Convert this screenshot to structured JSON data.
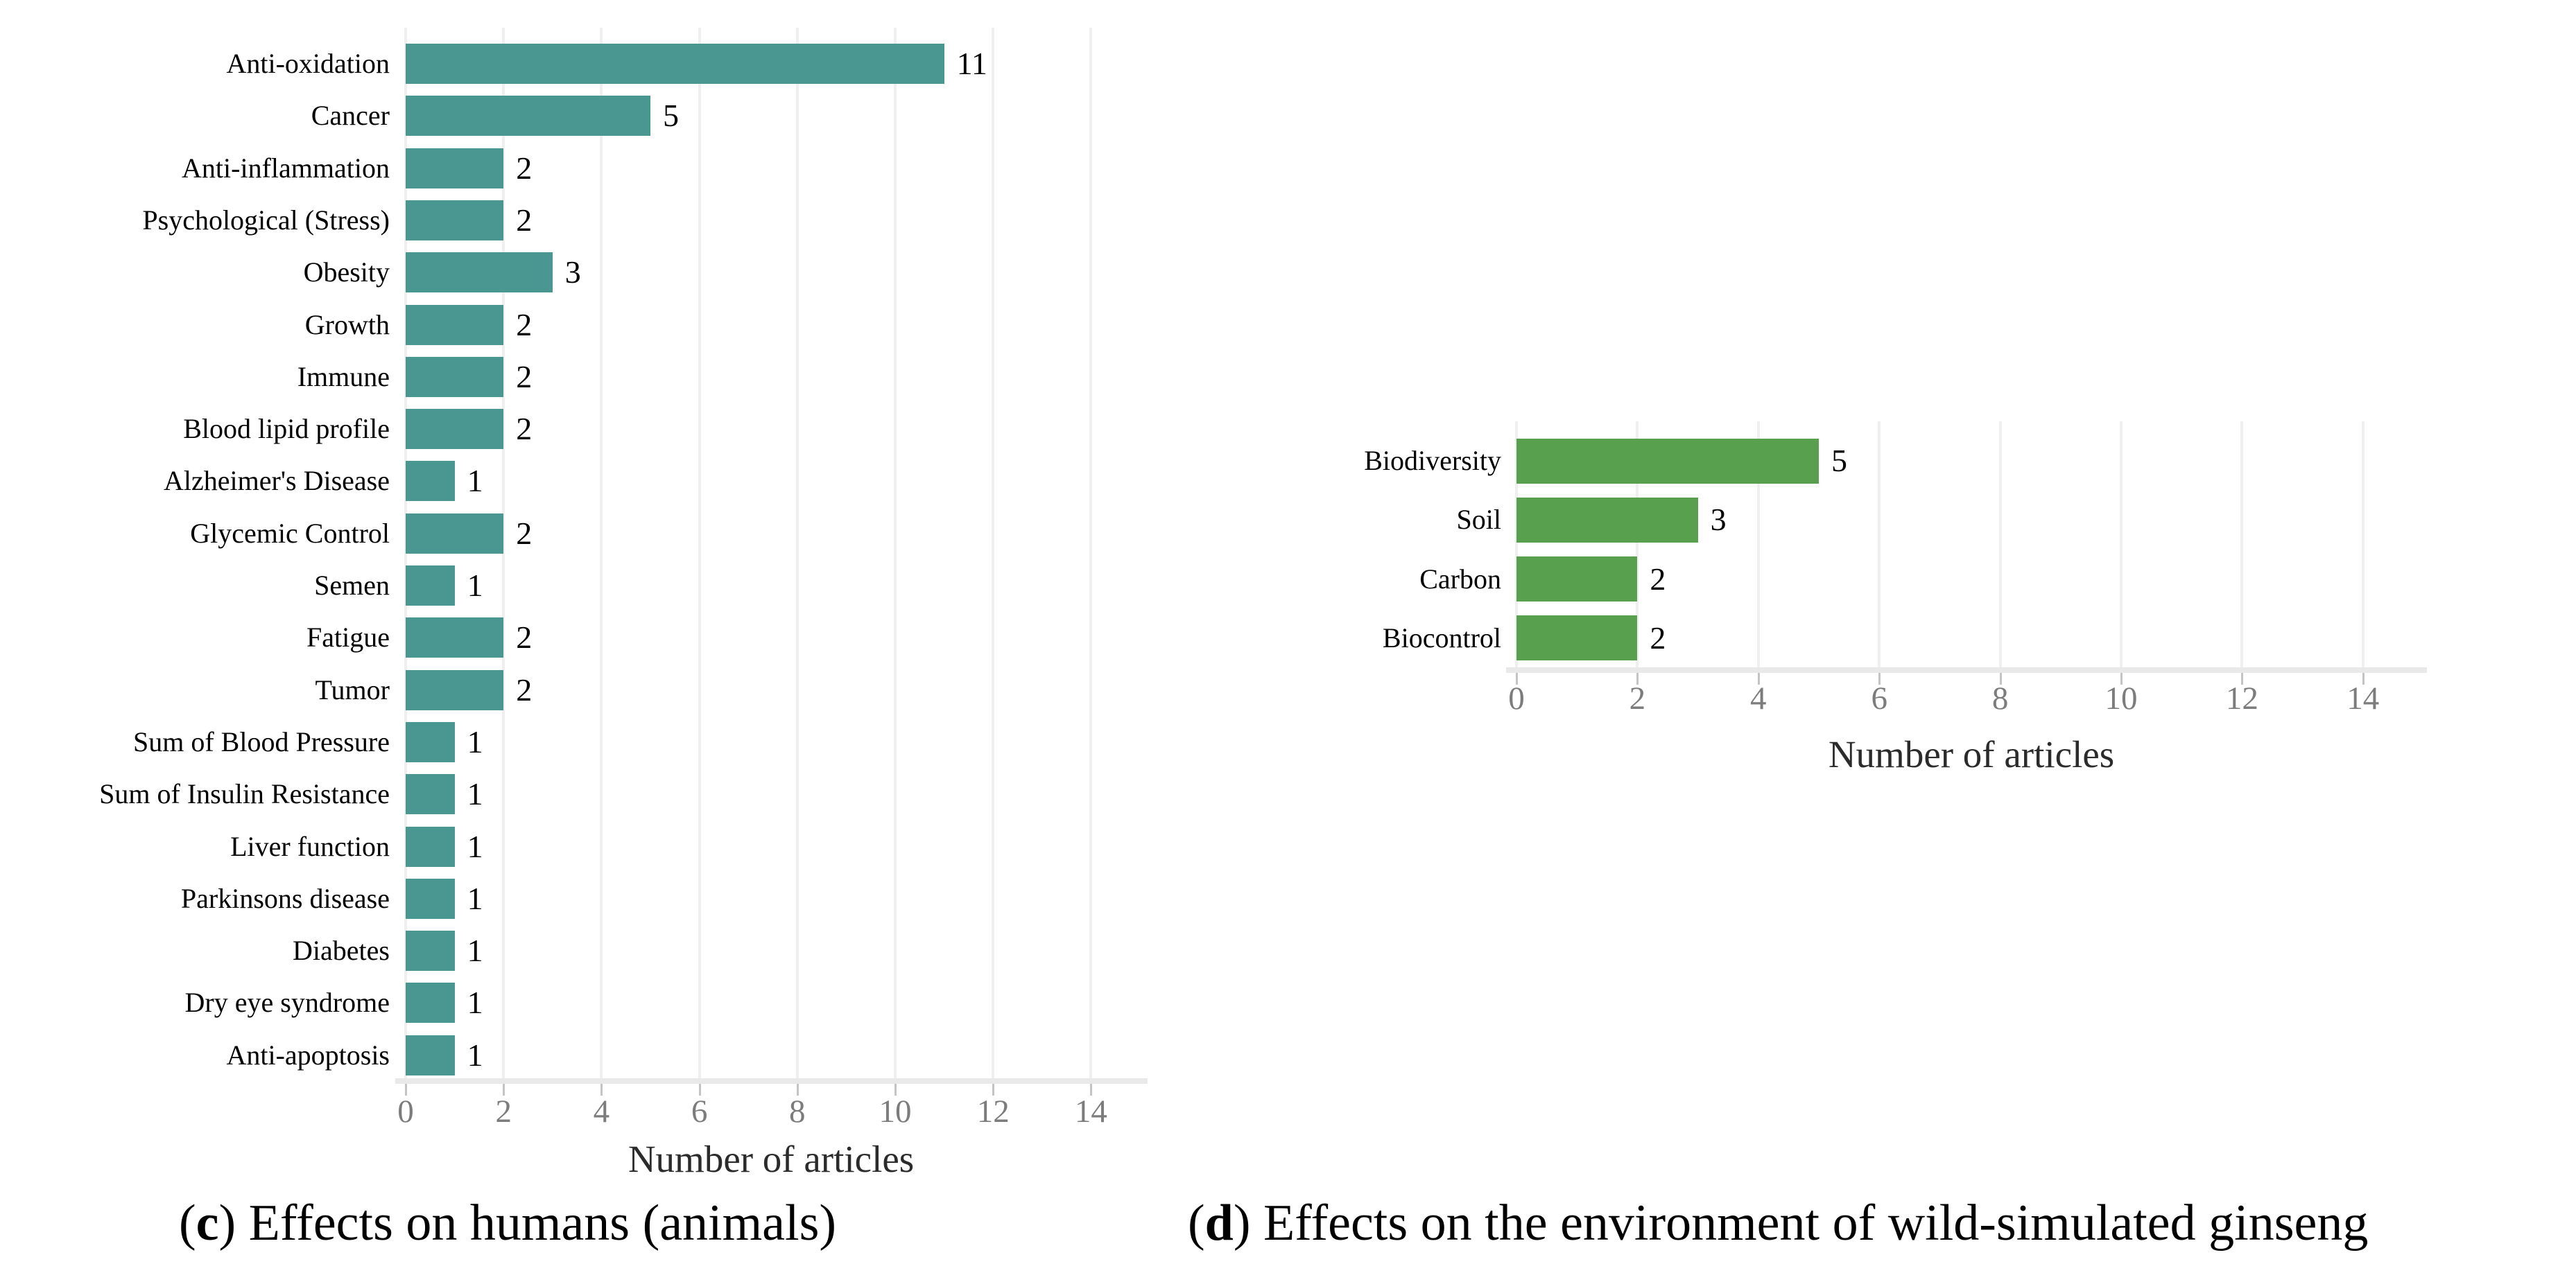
{
  "styles": {
    "background": "#ffffff",
    "grid_color": "#efefef",
    "baseline_color": "#e9e9e9",
    "tick_color": "#c4c4c4",
    "tick_label_color": "#7c7c7c",
    "axis_label_color": "#2b2b2b",
    "text_color": "#000000",
    "teal_bar_color": "#4a9792",
    "green_bar_color": "#58a04e"
  },
  "chart_data": [
    {
      "panel": "c",
      "type": "bar",
      "orientation": "horizontal",
      "title": "",
      "xlabel": "Number of articles",
      "ylabel": "",
      "bar_color": "#4a9792",
      "xlim": [
        0,
        15
      ],
      "xticks": [
        0,
        2,
        4,
        6,
        8,
        10,
        12,
        14
      ],
      "grid": "vertical major gridlines only",
      "legend": "none",
      "categories": [
        "Anti-oxidation",
        "Cancer",
        "Anti-inflammation",
        "Psychological (Stress)",
        "Obesity",
        "Growth",
        "Immune",
        "Blood lipid profile",
        "Alzheimer's Disease",
        "Glycemic Control",
        "Semen",
        "Fatigue",
        "Tumor",
        "Sum of Blood Pressure",
        "Sum of Insulin Resistance",
        "Liver function",
        "Parkinsons disease",
        "Diabetes",
        "Dry eye syndrome",
        "Anti-apoptosis"
      ],
      "values": [
        11,
        5,
        2,
        2,
        3,
        2,
        2,
        2,
        1,
        2,
        1,
        2,
        2,
        1,
        1,
        1,
        1,
        1,
        1,
        1
      ],
      "caption": {
        "open": "(",
        "marker": "c",
        "close": ") ",
        "text": "Effects on humans (animals)"
      }
    },
    {
      "panel": "d",
      "type": "bar",
      "orientation": "horizontal",
      "title": "",
      "xlabel": "Number of articles",
      "ylabel": "",
      "bar_color": "#58a04e",
      "xlim": [
        0,
        15
      ],
      "xticks": [
        0,
        2,
        4,
        6,
        8,
        10,
        12,
        14
      ],
      "grid": "vertical major gridlines only",
      "legend": "none",
      "categories": [
        "Biodiversity",
        "Soil",
        "Carbon",
        "Biocontrol"
      ],
      "values": [
        5,
        3,
        2,
        2
      ],
      "caption": {
        "open": "(",
        "marker": "d",
        "close": ") ",
        "text": "Effects on the environment of wild-simulated ginseng"
      }
    }
  ]
}
